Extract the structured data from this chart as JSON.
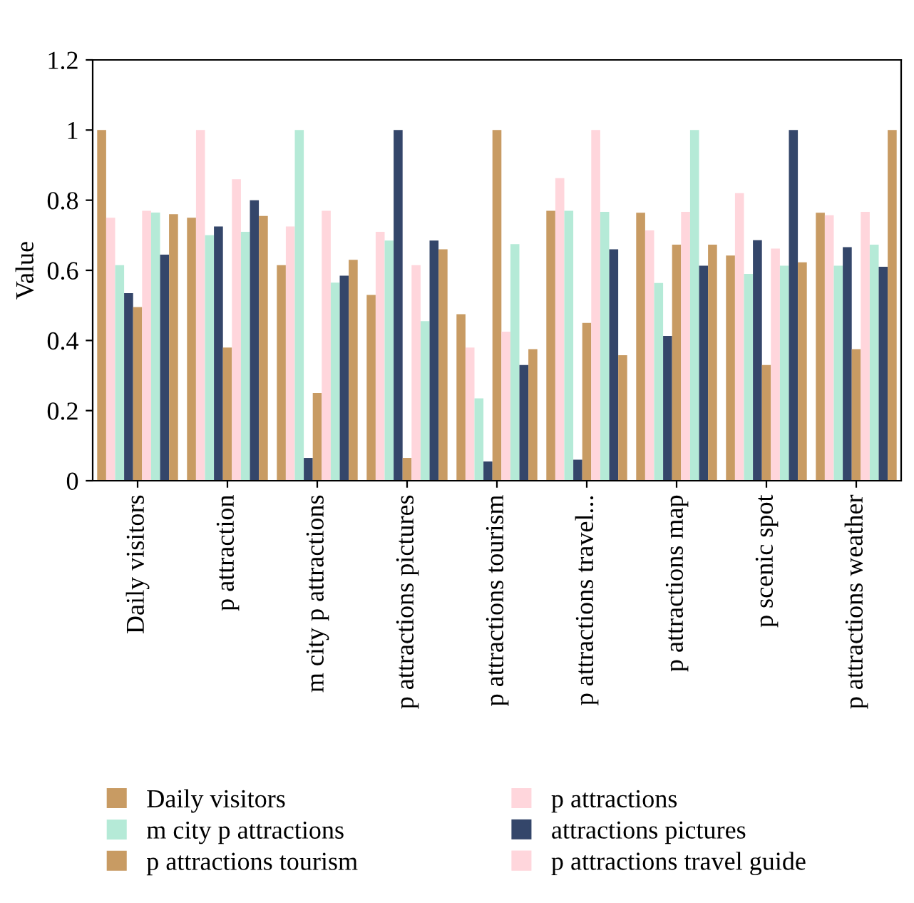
{
  "chart_data": {
    "type": "bar",
    "ylabel": "Value",
    "categories": [
      "Daily visitors",
      "p attraction",
      "m city p attractions",
      "p attractions pictures",
      "p attractions tourism",
      "p attractions travel...",
      "p attractions map",
      "p scenic spot",
      "p attractions weather"
    ],
    "ylim": [
      0,
      1.2
    ],
    "yticks": [
      0,
      0.2,
      0.4,
      0.6,
      0.8,
      1,
      1.2
    ],
    "grid": false,
    "legend": "bottom",
    "series": [
      {
        "name": "Daily visitors",
        "color": "#c89b63",
        "values": [
          1.0,
          0.75,
          0.615,
          0.53,
          0.475,
          0.77,
          0.764,
          0.642,
          0.764
        ]
      },
      {
        "name": "p attractions",
        "color": "#ffd6dc",
        "values": [
          0.75,
          1.0,
          0.725,
          0.71,
          0.38,
          0.863,
          0.714,
          0.82,
          0.757
        ]
      },
      {
        "name": "m city p attractions",
        "color": "#b5ead7",
        "values": [
          0.615,
          0.7,
          1.0,
          0.685,
          0.235,
          0.77,
          0.564,
          0.59,
          0.613
        ]
      },
      {
        "name": "attractions pictures",
        "color": "#34466a",
        "values": [
          0.535,
          0.725,
          0.065,
          1.0,
          0.055,
          0.06,
          0.413,
          0.686,
          0.666
        ]
      },
      {
        "name": "p attractions tourism",
        "color": "#c89b63",
        "values": [
          0.495,
          0.38,
          0.25,
          0.065,
          1.0,
          0.45,
          0.673,
          0.33,
          0.375
        ]
      },
      {
        "name": "p attractions travel guide",
        "color": "#ffd6dc",
        "values": [
          0.77,
          0.86,
          0.77,
          0.615,
          0.425,
          1.0,
          0.767,
          0.662,
          0.767
        ]
      },
      {
        "color": "#b5ead7",
        "values": [
          0.765,
          0.71,
          0.565,
          0.455,
          0.675,
          0.767,
          1.0,
          0.613,
          0.673
        ]
      },
      {
        "color": "#34466a",
        "values": [
          0.645,
          0.8,
          0.585,
          0.685,
          0.33,
          0.66,
          0.613,
          1.0,
          0.61
        ]
      },
      {
        "color": "#c89b63",
        "values": [
          0.76,
          0.755,
          0.63,
          0.66,
          0.375,
          0.358,
          0.673,
          0.623,
          1.0
        ]
      }
    ]
  }
}
